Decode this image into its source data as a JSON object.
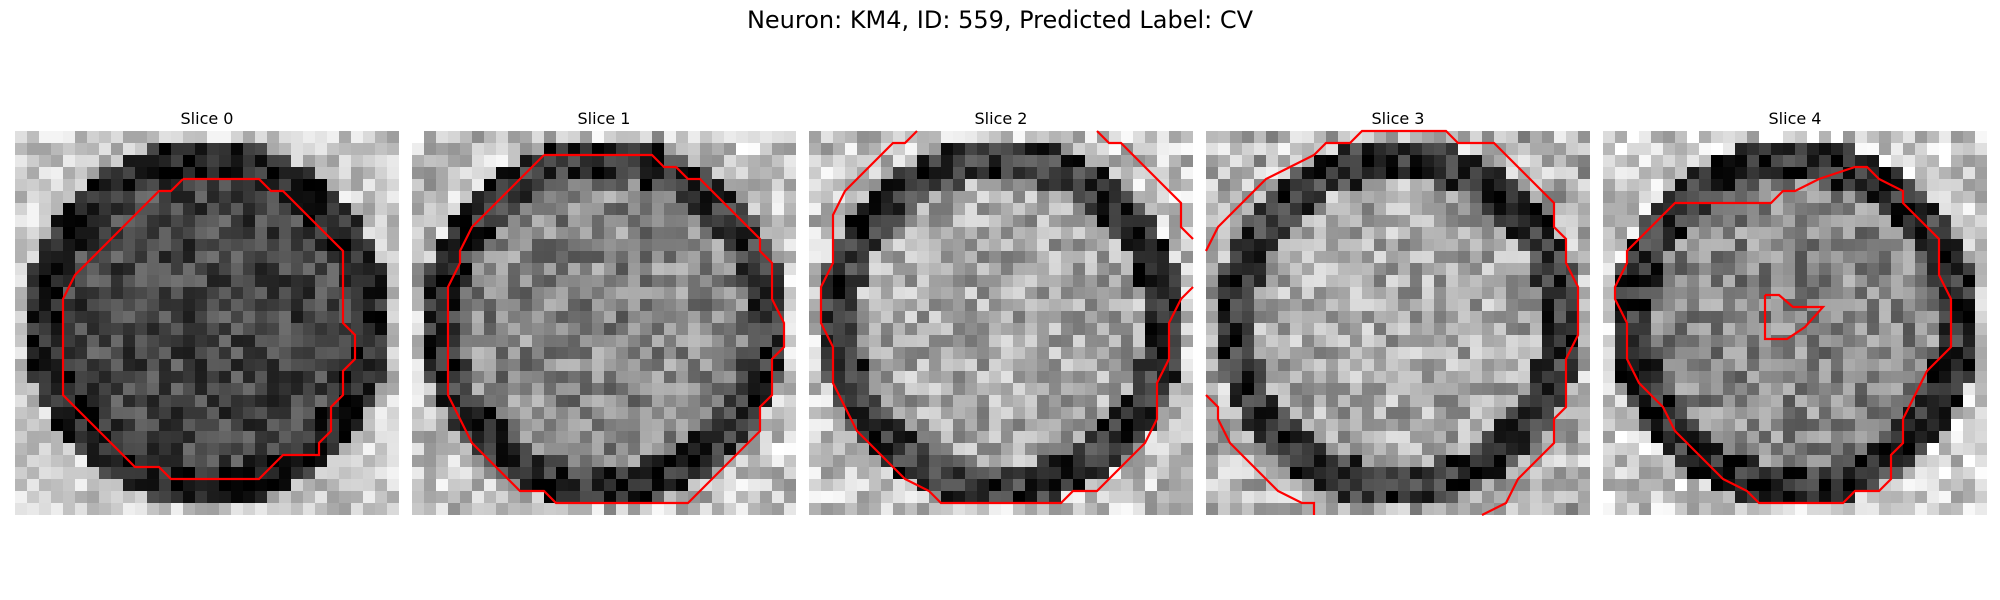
{
  "figure": {
    "title": "Neuron: KM4, ID: 559, Predicted Label: CV"
  },
  "colors": {
    "contour": "#ff0000",
    "colormap": "gray"
  },
  "panels": [
    {
      "title": "Slice 0",
      "brightness": "dark"
    },
    {
      "title": "Slice 1",
      "brightness": "medium"
    },
    {
      "title": "Slice 2",
      "brightness": "bright"
    },
    {
      "title": "Slice 3",
      "brightness": "bright"
    },
    {
      "title": "Slice 4",
      "brightness": "medium"
    }
  ]
}
